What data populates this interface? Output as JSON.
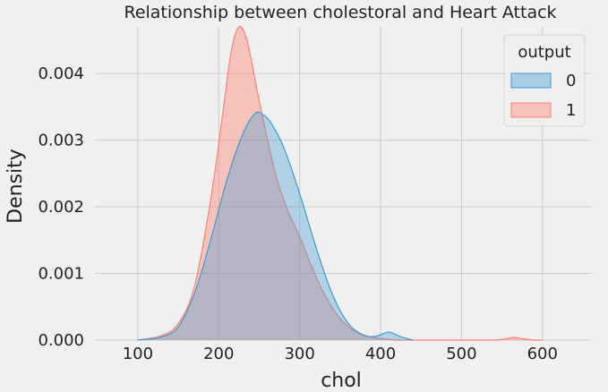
{
  "chart_data": {
    "type": "area",
    "title": "Relationship between cholestoral and Heart Attack",
    "xlabel": "chol",
    "ylabel": "Density",
    "xlim": [
      47,
      660
    ],
    "ylim": [
      0,
      0.0047
    ],
    "x_ticks": [
      100,
      200,
      300,
      400,
      500,
      600
    ],
    "y_ticks": [
      0.0,
      0.001,
      0.002,
      0.003,
      0.004
    ],
    "y_tick_labels": [
      "0.000",
      "0.001",
      "0.002",
      "0.003",
      "0.004"
    ],
    "grid": true,
    "legend": {
      "title": "output",
      "placement": "top-right"
    },
    "series": [
      {
        "name": "0",
        "color": "#3b9bd4",
        "fill": "#8fc3e3",
        "x": [
          100,
          130,
          150,
          170,
          190,
          210,
          230,
          245,
          255,
          265,
          280,
          300,
          320,
          340,
          360,
          380,
          395,
          410,
          425,
          440
        ],
        "y": [
          0.0,
          5e-05,
          0.0002,
          0.0007,
          0.0015,
          0.0024,
          0.0031,
          0.0034,
          0.00338,
          0.00325,
          0.0029,
          0.0022,
          0.0014,
          0.0007,
          0.00025,
          7e-05,
          6e-05,
          0.00012,
          5e-05,
          0.0
        ]
      },
      {
        "name": "1",
        "color": "#ff7f6e",
        "fill": "#f4b5ad",
        "x": [
          100,
          130,
          150,
          170,
          190,
          205,
          215,
          225,
          235,
          245,
          255,
          270,
          285,
          300,
          315,
          330,
          350,
          370,
          390,
          410,
          425,
          440,
          460,
          480,
          500,
          520,
          540,
          555,
          565,
          575,
          590,
          600
        ],
        "y": [
          0.0,
          7e-05,
          0.00025,
          0.0008,
          0.0021,
          0.0034,
          0.0043,
          0.0047,
          0.0045,
          0.0039,
          0.0033,
          0.0025,
          0.00195,
          0.00155,
          0.0011,
          0.0007,
          0.00032,
          0.00012,
          4e-05,
          1e-05,
          0.0,
          0.0,
          0.0,
          0.0,
          0.0,
          0.0,
          0.0,
          2e-05,
          4e-05,
          2e-05,
          0.0,
          0.0
        ]
      }
    ]
  }
}
